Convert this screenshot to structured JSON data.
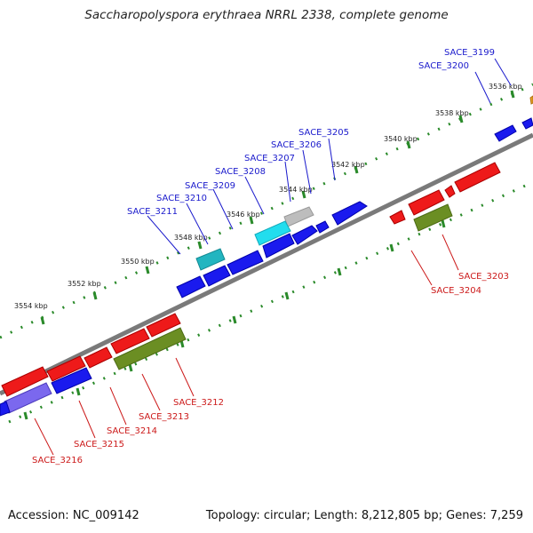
{
  "title": "Saccharopolyspora erythraea NRRL 2338, complete genome",
  "footer": {
    "accession": "Accession: NC_009142",
    "summary": "Topology: circular; Length: 8,212,805 bp; Genes: 7,259"
  },
  "colors": {
    "background": "#ffffff",
    "backbone": "#808080",
    "gene_plus_strand": "#1a1aee",
    "gene_minus_strand": "#ee1a1a",
    "cds_olive": "#6b8e23",
    "ticks": "#2a8a2a",
    "label_plus": "#1a1acc",
    "label_minus": "#cc1a1a"
  },
  "kbp_labels": [
    "3536 kbp",
    "3538 kbp",
    "3540 kbp",
    "3542 kbp",
    "3544 kbp",
    "3546 kbp",
    "3548 kbp",
    "3550 kbp",
    "3552 kbp",
    "3554 kbp"
  ],
  "top_genes": [
    "SACE_3199",
    "SACE_3200",
    "SACE_3205",
    "SACE_3206",
    "SACE_3207",
    "SACE_3208",
    "SACE_3209",
    "SACE_3210",
    "SACE_3211"
  ],
  "bottom_genes": [
    "SACE_3203",
    "SACE_3204",
    "SACE_3212",
    "SACE_3213",
    "SACE_3214",
    "SACE_3215",
    "SACE_3216"
  ]
}
